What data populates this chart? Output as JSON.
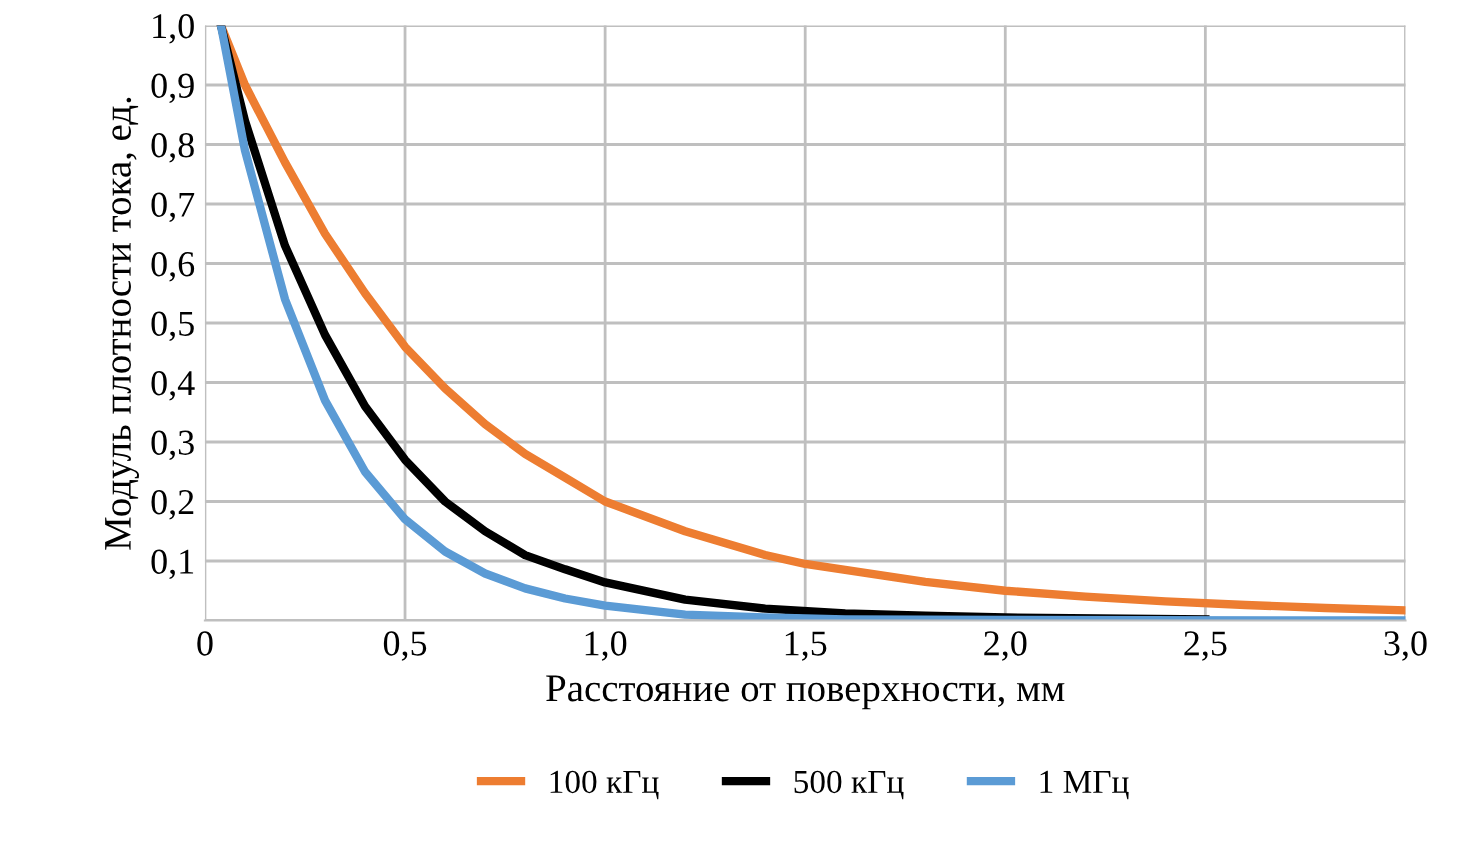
{
  "chart_data": {
    "type": "line",
    "xlabel": "Расстояние от поверхности, мм",
    "ylabel": "Модуль плотности тока, ед.",
    "series": [
      {
        "name": "100 кГц",
        "color": "#ed7d31",
        "x": [
          0.04,
          0.1,
          0.2,
          0.3,
          0.4,
          0.5,
          0.6,
          0.7,
          0.8,
          0.9,
          1.0,
          1.2,
          1.4,
          1.5,
          1.6,
          1.8,
          2.0,
          2.2,
          2.4,
          2.6,
          2.8,
          3.0
        ],
        "values": [
          1.0,
          0.9,
          0.77,
          0.65,
          0.55,
          0.46,
          0.39,
          0.33,
          0.28,
          0.24,
          0.2,
          0.15,
          0.11,
          0.095,
          0.085,
          0.065,
          0.05,
          0.04,
          0.032,
          0.026,
          0.021,
          0.017
        ]
      },
      {
        "name": "500 кГц",
        "color": "#000000",
        "x": [
          0.04,
          0.1,
          0.2,
          0.3,
          0.4,
          0.5,
          0.6,
          0.7,
          0.8,
          0.9,
          1.0,
          1.2,
          1.4,
          1.6,
          1.8,
          2.0,
          2.5
        ],
        "values": [
          1.0,
          0.84,
          0.63,
          0.48,
          0.36,
          0.27,
          0.2,
          0.15,
          0.11,
          0.086,
          0.064,
          0.035,
          0.02,
          0.012,
          0.008,
          0.005,
          0.002
        ]
      },
      {
        "name": "1 МГц",
        "color": "#5b9bd5",
        "x": [
          0.04,
          0.1,
          0.2,
          0.3,
          0.4,
          0.5,
          0.6,
          0.7,
          0.8,
          0.9,
          1.0,
          1.2,
          1.4,
          1.6,
          2.0,
          3.0
        ],
        "values": [
          1.0,
          0.79,
          0.54,
          0.37,
          0.25,
          0.17,
          0.116,
          0.079,
          0.054,
          0.037,
          0.025,
          0.01,
          0.005,
          0.002,
          0.001,
          0.0
        ]
      }
    ],
    "xlim": [
      0,
      3
    ],
    "ylim": [
      0,
      1
    ],
    "xticks": [
      0,
      {
        "value": 0.5,
        "label": "0,5"
      },
      {
        "value": 1.0,
        "label": "1,0"
      },
      {
        "value": 1.5,
        "label": "1,5"
      },
      {
        "value": 2.0,
        "label": "2,0"
      },
      {
        "value": 2.5,
        "label": "2,5"
      },
      {
        "value": 3.0,
        "label": "3,0"
      }
    ],
    "yticks": [
      {
        "value": 0,
        "label": null
      },
      {
        "value": 0.1,
        "label": "0,1"
      },
      {
        "value": 0.2,
        "label": "0,2"
      },
      {
        "value": 0.3,
        "label": "0,3"
      },
      {
        "value": 0.4,
        "label": "0,4"
      },
      {
        "value": 0.5,
        "label": "0,5"
      },
      {
        "value": 0.6,
        "label": "0,6"
      },
      {
        "value": 0.7,
        "label": "0,7"
      },
      {
        "value": 0.8,
        "label": "0,8"
      },
      {
        "value": 0.9,
        "label": "0,9"
      },
      {
        "value": 1.0,
        "label": "1,0"
      }
    ],
    "grid": true,
    "legend": "bottom",
    "marker": "none",
    "line_style": "solid"
  }
}
